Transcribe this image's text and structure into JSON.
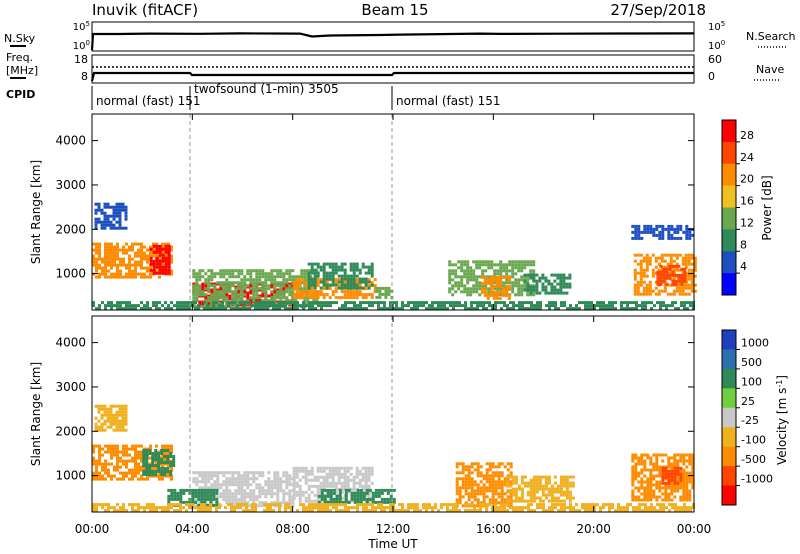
{
  "header": {
    "station": "Inuvik (fitACF)",
    "beam": "Beam 15",
    "date": "27/Sep/2018"
  },
  "strip_nsky": {
    "label": "N.Sky",
    "right_label": "N.Search",
    "left_ticks": [
      "10^5",
      "10^0"
    ],
    "right_ticks": [
      "10^5",
      "10^0"
    ]
  },
  "strip_freq": {
    "label_line1": "Freq.",
    "label_line2": "[MHz]",
    "right_label": "Nave",
    "left_ticks": [
      "18",
      "8"
    ],
    "right_ticks": [
      "60",
      "0"
    ]
  },
  "cpid": {
    "label": "CPID",
    "segments": [
      {
        "start": 0,
        "end": 3.9,
        "text": "normal (fast) 151"
      },
      {
        "start": 3.9,
        "end": 12,
        "text": "twofsound (1-min) 3505"
      },
      {
        "start": 12,
        "end": 24,
        "text": "normal (fast) 151"
      }
    ]
  },
  "time_axis": {
    "label": "Time UT",
    "ticks": [
      "00:00",
      "04:00",
      "08:00",
      "12:00",
      "16:00",
      "20:00",
      "00:00"
    ]
  },
  "power_colorbar": {
    "title": "Power [dB]",
    "labels": [
      "28",
      "24",
      "20",
      "16",
      "12",
      "8",
      "4"
    ],
    "colors": [
      "#ff0000",
      "#ff4500",
      "#ff8c00",
      "#f0c020",
      "#6aa84f",
      "#2e8b57",
      "#1e4fc0",
      "#0000ff"
    ]
  },
  "velocity_colorbar": {
    "title": "Velocity [m s^-1]",
    "labels": [
      "1000",
      "500",
      "100",
      "25",
      "-25",
      "-100",
      "-500",
      "-1000"
    ],
    "colors": [
      "#1f3fbf",
      "#2e6fae",
      "#2e8b57",
      "#6fcf3f",
      "#c8c8c8",
      "#f0b020",
      "#ff8c00",
      "#ff4500",
      "#ff0000"
    ]
  },
  "chart_data": [
    {
      "type": "heatmap",
      "panel": "power",
      "ylabel": "Slant Range [km]",
      "xlabel": "Time UT",
      "xlim": [
        0,
        24
      ],
      "ylim": [
        180,
        4600
      ],
      "yticks": [
        1000,
        2000,
        3000,
        4000
      ],
      "xticks": [
        0,
        4,
        8,
        12,
        16,
        20,
        24
      ],
      "colorbar_label": "Power [dB]",
      "regions": [
        {
          "t0": 0.0,
          "t1": 3.2,
          "r0": 900,
          "r1": 1700,
          "value": 22
        },
        {
          "t0": 2.3,
          "t1": 3.1,
          "r0": 1000,
          "r1": 1650,
          "value": 28
        },
        {
          "t0": 0.1,
          "t1": 1.4,
          "r0": 2000,
          "r1": 2600,
          "value": 5
        },
        {
          "t0": 4.0,
          "t1": 8.0,
          "r0": 300,
          "r1": 800,
          "value": 29
        },
        {
          "t0": 4.0,
          "t1": 9.0,
          "r0": 250,
          "r1": 1100,
          "value": 14
        },
        {
          "t0": 8.0,
          "t1": 11.3,
          "r0": 450,
          "r1": 900,
          "value": 20
        },
        {
          "t0": 8.6,
          "t1": 11.2,
          "r0": 700,
          "r1": 1250,
          "value": 10
        },
        {
          "t0": 11.3,
          "t1": 12.0,
          "r0": 450,
          "r1": 700,
          "value": 14
        },
        {
          "t0": 14.2,
          "t1": 17.6,
          "r0": 500,
          "r1": 1300,
          "value": 13
        },
        {
          "t0": 15.5,
          "t1": 16.6,
          "r0": 450,
          "r1": 950,
          "value": 22
        },
        {
          "t0": 17.2,
          "t1": 19.0,
          "r0": 550,
          "r1": 1000,
          "value": 10
        },
        {
          "t0": 21.6,
          "t1": 24.0,
          "r0": 550,
          "r1": 1450,
          "value": 20
        },
        {
          "t0": 22.5,
          "t1": 23.6,
          "r0": 750,
          "r1": 1200,
          "value": 26
        },
        {
          "t0": 21.5,
          "t1": 24.0,
          "r0": 1800,
          "r1": 2100,
          "value": 5
        },
        {
          "t0": 0.0,
          "t1": 24.0,
          "r0": 180,
          "r1": 380,
          "value": 9
        }
      ]
    },
    {
      "type": "heatmap",
      "panel": "velocity",
      "ylabel": "Slant Range [km]",
      "xlabel": "Time UT",
      "xlim": [
        0,
        24
      ],
      "ylim": [
        180,
        4600
      ],
      "yticks": [
        1000,
        2000,
        3000,
        4000
      ],
      "xticks": [
        0,
        4,
        8,
        12,
        16,
        20,
        24
      ],
      "colorbar_label": "Velocity [m s^-1]",
      "regions": [
        {
          "t0": 0.0,
          "t1": 3.2,
          "r0": 900,
          "r1": 1700,
          "value": -200
        },
        {
          "t0": 2.0,
          "t1": 3.2,
          "r0": 1000,
          "r1": 1600,
          "value": 150
        },
        {
          "t0": 0.1,
          "t1": 1.3,
          "r0": 2000,
          "r1": 2600,
          "value": -60
        },
        {
          "t0": 4.0,
          "t1": 8.0,
          "r0": 300,
          "r1": 1100,
          "value": 0
        },
        {
          "t0": 3.0,
          "t1": 5.0,
          "r0": 300,
          "r1": 700,
          "value": 200
        },
        {
          "t0": 8.0,
          "t1": 11.2,
          "r0": 400,
          "r1": 1200,
          "value": 0
        },
        {
          "t0": 9.0,
          "t1": 12.0,
          "r0": 400,
          "r1": 700,
          "value": 200
        },
        {
          "t0": 14.5,
          "t1": 16.7,
          "r0": 350,
          "r1": 1300,
          "value": -300
        },
        {
          "t0": 16.5,
          "t1": 19.2,
          "r0": 450,
          "r1": 1000,
          "value": -60
        },
        {
          "t0": 21.5,
          "t1": 24.0,
          "r0": 450,
          "r1": 1500,
          "value": -300
        },
        {
          "t0": 22.7,
          "t1": 23.5,
          "r0": 800,
          "r1": 1200,
          "value": -800
        },
        {
          "t0": 0.0,
          "t1": 24.0,
          "r0": 180,
          "r1": 380,
          "value": -60
        }
      ]
    }
  ]
}
